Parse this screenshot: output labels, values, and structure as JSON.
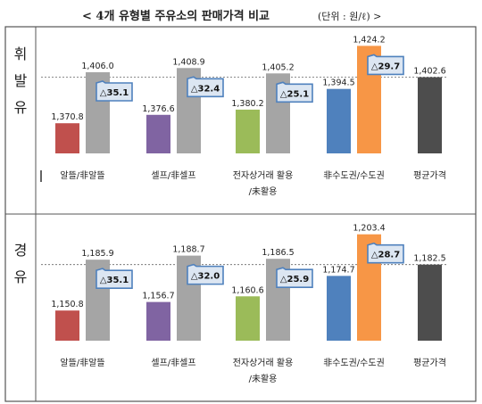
{
  "header": {
    "title": "< 4개 유형별 주유소의 판매가격 비교",
    "unit": "(단위 : 원/ℓ) >"
  },
  "chart_data": [
    {
      "type": "bar",
      "row_label": "휘발유",
      "groups": [
        {
          "label_lines": [
            "알뜰/非알뜰"
          ],
          "values": [
            1370.8,
            1406.0
          ],
          "value_labels": [
            "1,370.8",
            "1,406.0"
          ],
          "colors": [
            "#c0504d",
            "#a5a5a5"
          ],
          "diff": "△35.1"
        },
        {
          "label_lines": [
            "셀프/非셀프"
          ],
          "values": [
            1376.6,
            1408.9
          ],
          "value_labels": [
            "1,376.6",
            "1,408.9"
          ],
          "colors": [
            "#8064a2",
            "#a5a5a5"
          ],
          "diff": "△32.4"
        },
        {
          "label_lines": [
            "전자상거래 활용",
            "/未활용"
          ],
          "values": [
            1380.2,
            1405.2
          ],
          "value_labels": [
            "1,380.2",
            "1,405.2"
          ],
          "colors": [
            "#9bbb59",
            "#a5a5a5"
          ],
          "diff": "△25.1"
        },
        {
          "label_lines": [
            "非수도권/수도권"
          ],
          "values": [
            1394.5,
            1424.2
          ],
          "value_labels": [
            "1,394.5",
            "1,424.2"
          ],
          "colors": [
            "#4f81bd",
            "#f79646"
          ],
          "diff": "△29.7"
        },
        {
          "label_lines": [
            "평균가격"
          ],
          "values": [
            1402.6
          ],
          "value_labels": [
            "1,402.6"
          ],
          "colors": [
            "#4d4d4d"
          ],
          "diff": ""
        }
      ],
      "reference_line": 1402.6,
      "ylim": [
        1350,
        1430
      ]
    },
    {
      "type": "bar",
      "row_label": "경유",
      "groups": [
        {
          "label_lines": [
            "알뜰/非알뜰"
          ],
          "values": [
            1150.8,
            1185.9
          ],
          "value_labels": [
            "1,150.8",
            "1,185.9"
          ],
          "colors": [
            "#c0504d",
            "#a5a5a5"
          ],
          "diff": "△35.1"
        },
        {
          "label_lines": [
            "셀프/非셀프"
          ],
          "values": [
            1156.7,
            1188.7
          ],
          "value_labels": [
            "1,156.7",
            "1,188.7"
          ],
          "colors": [
            "#8064a2",
            "#a5a5a5"
          ],
          "diff": "△32.0"
        },
        {
          "label_lines": [
            "전자상거래 활용",
            "/未활용"
          ],
          "values": [
            1160.6,
            1186.5
          ],
          "value_labels": [
            "1,160.6",
            "1,186.5"
          ],
          "colors": [
            "#9bbb59",
            "#a5a5a5"
          ],
          "diff": "△25.9"
        },
        {
          "label_lines": [
            "非수도권/수도권"
          ],
          "values": [
            1174.7,
            1203.4
          ],
          "value_labels": [
            "1,174.7",
            "1,203.4"
          ],
          "colors": [
            "#4f81bd",
            "#f79646"
          ],
          "diff": "△28.7"
        },
        {
          "label_lines": [
            "평균가격"
          ],
          "values": [
            1182.5
          ],
          "value_labels": [
            "1,182.5"
          ],
          "colors": [
            "#4d4d4d"
          ],
          "diff": ""
        }
      ],
      "reference_line": 1182.5,
      "ylim": [
        1130,
        1210
      ]
    }
  ],
  "colors": {
    "callout_fill": "#dce6f2",
    "callout_stroke": "#4f81bd",
    "border": "#555555",
    "reference_line": "#666666"
  }
}
